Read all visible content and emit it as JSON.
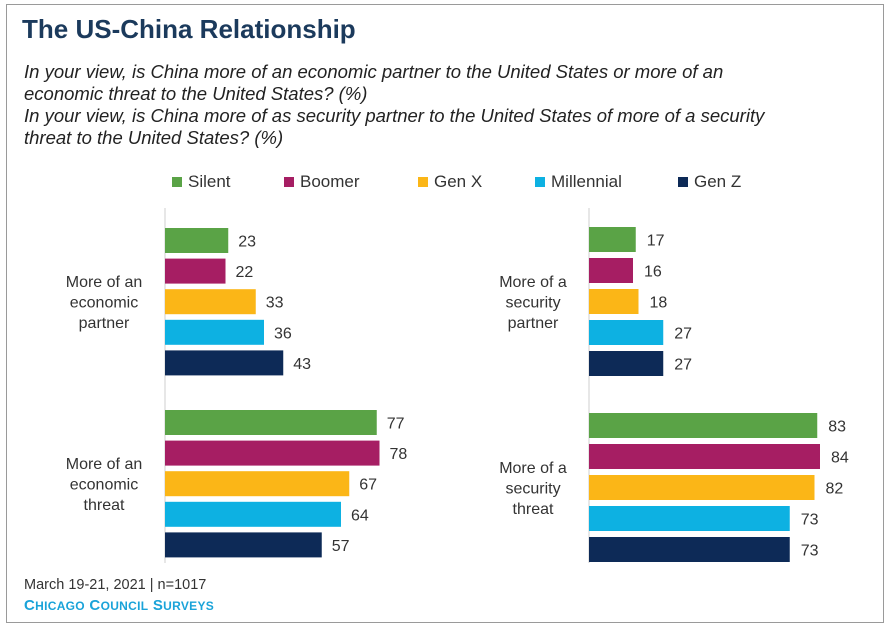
{
  "title": "The US-China Relationship",
  "subtitle_1_line1": "In your view, is China more of an economic partner to the United States or more of an",
  "subtitle_1_line2": "economic threat to the United States? (%)",
  "subtitle_2_line1": "In your view, is China more of as security partner to the United States of more of a security",
  "subtitle_2_line2": "threat to the United States? (%)",
  "legend": [
    {
      "name": "Silent",
      "color": "#5aa346"
    },
    {
      "name": "Boomer",
      "color": "#a61e63"
    },
    {
      "name": "Gen X",
      "color": "#fbb617"
    },
    {
      "name": "Millennial",
      "color": "#0db1e2"
    },
    {
      "name": "Gen Z",
      "color": "#0d2a57"
    }
  ],
  "footnote": "March 19-21, 2021 | n=1017",
  "source": "Chicago Council Surveys",
  "chart_data": [
    {
      "type": "bar",
      "orientation": "horizontal",
      "categories": [
        [
          "More of an",
          "economic",
          "partner"
        ],
        [
          "More of an",
          "economic",
          "threat"
        ]
      ],
      "series": [
        {
          "name": "Silent",
          "values": [
            23,
            77
          ]
        },
        {
          "name": "Boomer",
          "values": [
            22,
            78
          ]
        },
        {
          "name": "Gen X",
          "values": [
            33,
            67
          ]
        },
        {
          "name": "Millennial",
          "values": [
            36,
            64
          ]
        },
        {
          "name": "Gen Z",
          "values": [
            43,
            57
          ]
        }
      ],
      "xlim": [
        0,
        100
      ],
      "grid": false
    },
    {
      "type": "bar",
      "orientation": "horizontal",
      "categories": [
        [
          "More of a",
          "security",
          "partner"
        ],
        [
          "More of a",
          "security",
          "threat"
        ]
      ],
      "series": [
        {
          "name": "Silent",
          "values": [
            17,
            83
          ]
        },
        {
          "name": "Boomer",
          "values": [
            16,
            84
          ]
        },
        {
          "name": "Gen X",
          "values": [
            18,
            82
          ]
        },
        {
          "name": "Millennial",
          "values": [
            27,
            73
          ]
        },
        {
          "name": "Gen Z",
          "values": [
            27,
            73
          ]
        }
      ],
      "xlim": [
        0,
        100
      ],
      "grid": false
    }
  ]
}
